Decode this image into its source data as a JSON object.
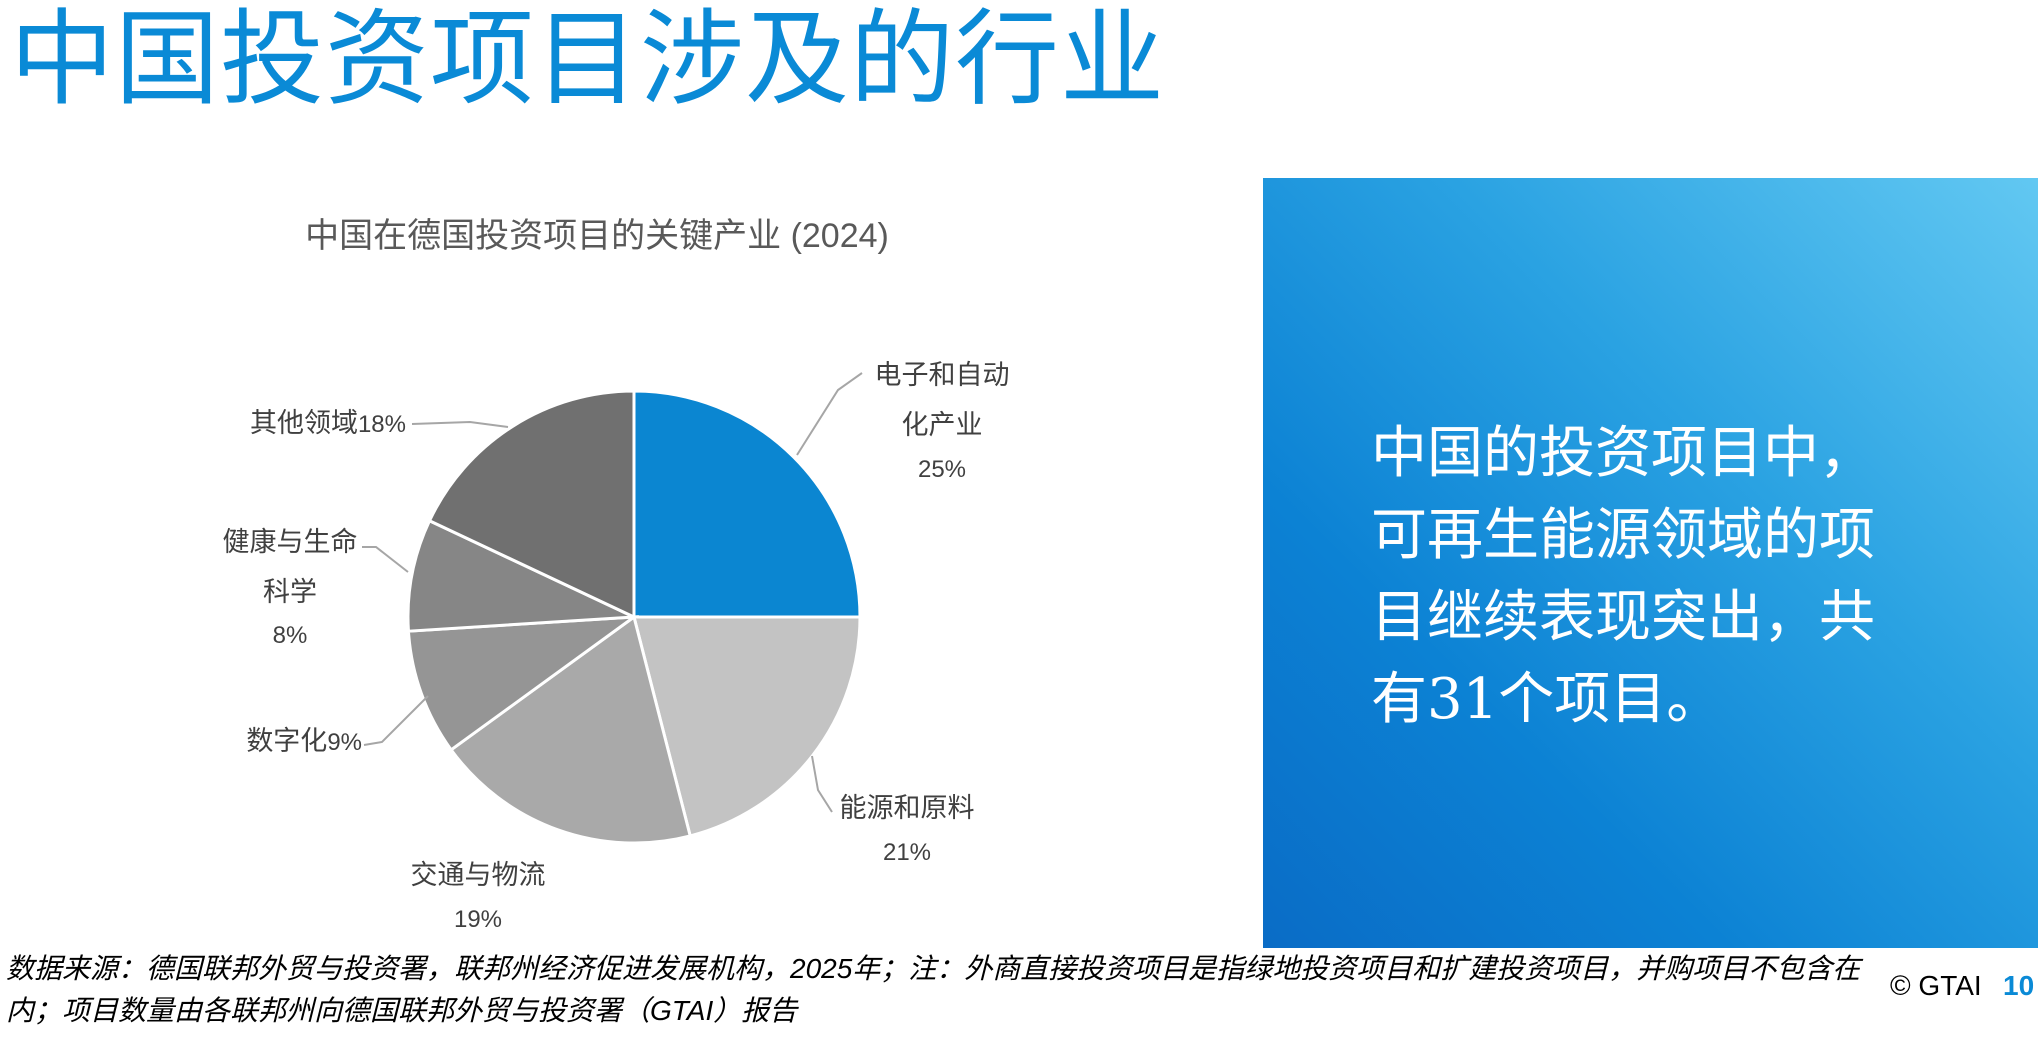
{
  "slide": {
    "title": "中国投资项目涉及的行业"
  },
  "chart_data": {
    "type": "pie",
    "title": "中国在德国投资项目的关键产业 (2024)",
    "slices": [
      {
        "label_lines": [
          "电子和自动",
          "化产业"
        ],
        "value": 25,
        "pct_label": "25%",
        "color": "#0b86d1"
      },
      {
        "label_lines": [
          "能源和原料"
        ],
        "value": 21,
        "pct_label": "21%",
        "color": "#c3c3c3"
      },
      {
        "label_lines": [
          "交通与物流"
        ],
        "value": 19,
        "pct_label": "19%",
        "color": "#a9a9a9"
      },
      {
        "label_lines": [
          "数字化"
        ],
        "value": 9,
        "pct_label": "9%",
        "color": "#959595"
      },
      {
        "label_lines": [
          "健康与生命",
          "科学"
        ],
        "value": 8,
        "pct_label": "8%",
        "color": "#868686"
      },
      {
        "label_lines": [
          "其他领域"
        ],
        "value": 18,
        "pct_label": "18%",
        "color": "#707070"
      }
    ]
  },
  "callout": {
    "text": "中国的投资项目中，\n可再生能源领域的项\n目继续表现突出，共\n有31个项目。"
  },
  "footer": {
    "source": "数据来源：德国联邦外贸与投资署，联邦州经济促进发展机构，2025年；注：外商直接投资项目是指绿地投资项目和扩建投资项目，并购项目不包含在内；项目数量由各联邦州向德国联邦外贸与投资署（GTAI）报告",
    "copyright": "© GTAI",
    "page_number": "10"
  }
}
